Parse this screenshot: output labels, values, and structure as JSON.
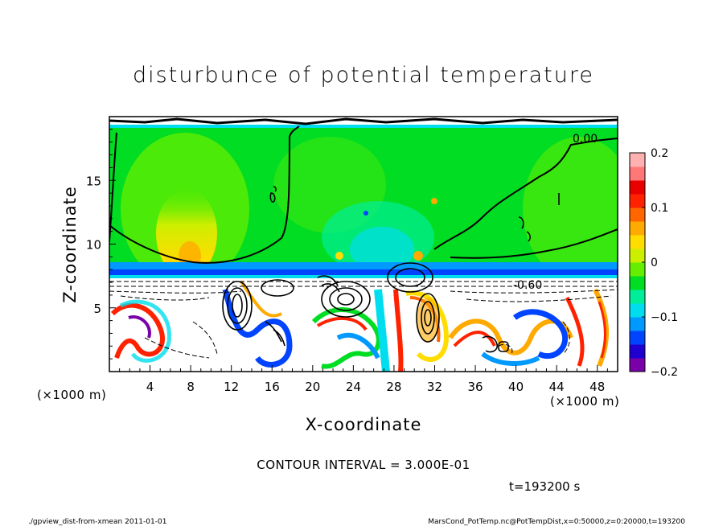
{
  "chart_data": {
    "type": "heatmap",
    "title": "disturbunce of potential temperature",
    "xlabel": "X-coordinate",
    "ylabel": "Z-coordinate",
    "x_unit": "(×1000 m)",
    "y_unit": "(×1000 m)",
    "xlim": [
      0,
      50
    ],
    "ylim": [
      0,
      20
    ],
    "x_ticks": [
      4,
      8,
      12,
      16,
      20,
      24,
      28,
      32,
      36,
      40,
      44,
      48
    ],
    "y_ticks": [
      5,
      10,
      15
    ],
    "colorbar": {
      "min": -0.2,
      "max": 0.2,
      "ticks": [
        0.2,
        0.1,
        0,
        -0.1,
        -0.2
      ],
      "tick_labels": [
        "0.2",
        "0.1",
        "0",
        "−0.1",
        "−0.2"
      ],
      "colors": [
        "#7a00a8",
        "#1f00d0",
        "#0044ff",
        "#0099ff",
        "#00ddee",
        "#00ee99",
        "#00dd22",
        "#66ee00",
        "#ccee00",
        "#ffdd00",
        "#ffaa00",
        "#ff6600",
        "#ff2200",
        "#e80000",
        "#ff7777",
        "#ffb0b0"
      ]
    },
    "contour_labels": [
      "0.00",
      "-0.60"
    ],
    "contour_interval": "CONTOUR INTERVAL = 3.000E-01",
    "time": "t=193200 s"
  },
  "footer": {
    "left": "./gpview_dist-from-xmean  2011-01-01",
    "right": "MarsCond_PotTemp.nc@PotTempDist,x=0:50000,z=0:20000,t=193200"
  }
}
